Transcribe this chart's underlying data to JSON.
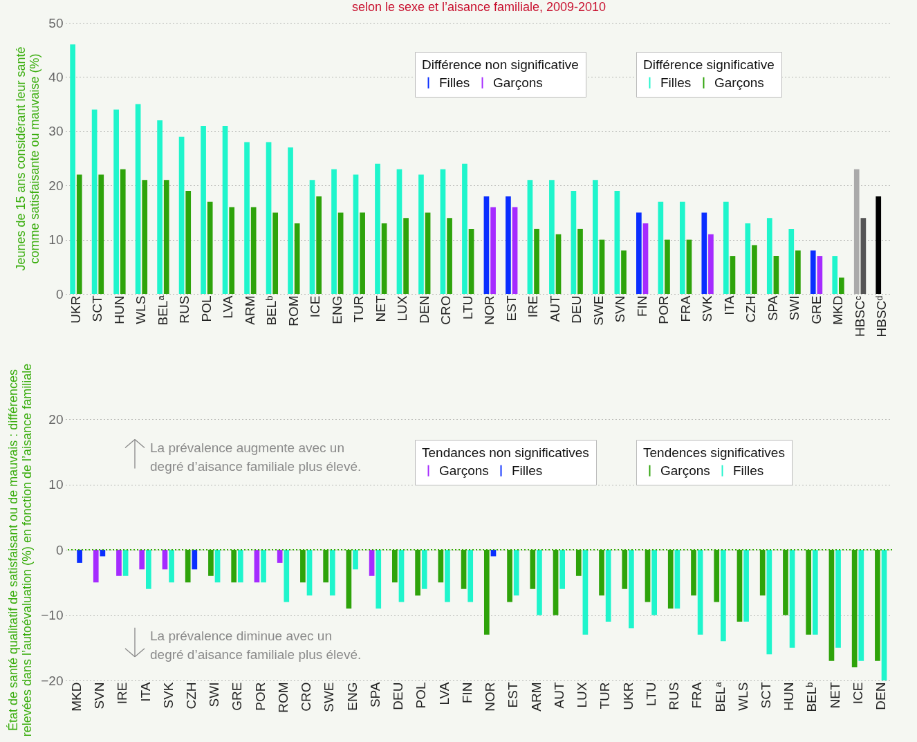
{
  "chart_data": [
    {
      "type": "bar",
      "title": "selon le sexe et l’aisance familiale, 2009-2010",
      "ylabel": "Jeunes de 15 ans considérant leur santé comme satisfaisante ou mauvaise (%)",
      "categories": [
        "UKR",
        "SCT",
        "HUN",
        "WLS",
        "BELᵃ",
        "RUS",
        "POL",
        "LVA",
        "ARM",
        "BELᵇ",
        "ROM",
        "ICE",
        "ENG",
        "TUR",
        "NET",
        "LUX",
        "DEN",
        "CRO",
        "LTU",
        "NOR",
        "EST",
        "IRE",
        "AUT",
        "DEU",
        "SWE",
        "SVN",
        "FIN",
        "POR",
        "FRA",
        "SVK",
        "ITA",
        "CZH",
        "SPA",
        "SWI",
        "GRE",
        "MKD",
        "HBSCᶜ",
        "HBSCᵈ"
      ],
      "series": [
        {
          "name": "Filles",
          "color": "#0a2eff",
          "values": [
            null,
            null,
            null,
            null,
            null,
            null,
            null,
            null,
            null,
            null,
            null,
            null,
            null,
            null,
            null,
            null,
            null,
            null,
            null,
            18,
            18,
            null,
            null,
            null,
            null,
            null,
            15,
            null,
            null,
            15,
            null,
            null,
            null,
            null,
            8,
            null,
            null,
            null
          ]
        },
        {
          "name": "Garçons",
          "color": "#a52bff",
          "values": [
            null,
            null,
            null,
            null,
            null,
            null,
            null,
            null,
            null,
            null,
            null,
            null,
            null,
            null,
            null,
            null,
            null,
            null,
            null,
            16,
            16,
            null,
            null,
            null,
            null,
            null,
            13,
            null,
            null,
            11,
            null,
            null,
            null,
            null,
            7,
            null,
            null,
            null
          ]
        },
        {
          "name": "Filles",
          "color": "#1ff5cc",
          "values": [
            46,
            34,
            34,
            35,
            32,
            29,
            31,
            31,
            28,
            28,
            27,
            21,
            23,
            22,
            24,
            23,
            22,
            23,
            24,
            null,
            null,
            21,
            21,
            19,
            21,
            19,
            null,
            17,
            17,
            null,
            17,
            13,
            14,
            12,
            null,
            7,
            null,
            null
          ]
        },
        {
          "name": "Garçons",
          "color": "#2ea30a",
          "values": [
            22,
            22,
            23,
            21,
            21,
            19,
            17,
            16,
            16,
            15,
            13,
            18,
            15,
            15,
            13,
            14,
            15,
            14,
            12,
            null,
            null,
            12,
            11,
            12,
            10,
            8,
            null,
            10,
            10,
            null,
            7,
            9,
            7,
            8,
            null,
            3,
            null,
            null
          ]
        },
        {
          "values": [
            null,
            null,
            null,
            null,
            null,
            null,
            null,
            null,
            null,
            null,
            null,
            null,
            null,
            null,
            null,
            null,
            null,
            null,
            null,
            null,
            null,
            null,
            null,
            null,
            null,
            null,
            null,
            null,
            null,
            null,
            null,
            null,
            null,
            null,
            null,
            null,
            23,
            18
          ],
          "colors": [
            null,
            null,
            null,
            null,
            null,
            null,
            null,
            null,
            null,
            null,
            null,
            null,
            null,
            null,
            null,
            null,
            null,
            null,
            null,
            null,
            null,
            null,
            null,
            null,
            null,
            null,
            null,
            null,
            null,
            null,
            null,
            null,
            null,
            null,
            null,
            null,
            "#aaaaaa",
            "#000000"
          ]
        },
        {
          "color": "#555555",
          "values": [
            null,
            null,
            null,
            null,
            null,
            null,
            null,
            null,
            null,
            null,
            null,
            null,
            null,
            null,
            null,
            null,
            null,
            null,
            null,
            null,
            null,
            null,
            null,
            null,
            null,
            null,
            null,
            null,
            null,
            null,
            null,
            null,
            null,
            null,
            null,
            null,
            14,
            null
          ]
        }
      ],
      "ylim": [
        0,
        50
      ],
      "yticks": [
        0,
        10,
        20,
        30,
        40,
        50
      ],
      "grid": "y",
      "legend": "top right",
      "annotations": [
        "Différence non significative",
        "Différence significative"
      ]
    },
    {
      "type": "bar",
      "ylabel": "État de santé qualitatif de satisfaisant ou de mauvais : différences relevées dans l’autoévaluation (%) en fonction de l’aisance familiale",
      "categories": [
        "MKD",
        "SVN",
        "IRE",
        "ITA",
        "SVK",
        "CZH",
        "SWI",
        "GRE",
        "POR",
        "ROM",
        "CRO",
        "SWE",
        "ENG",
        "SPA",
        "DEU",
        "POL",
        "LVA",
        "FIN",
        "NOR",
        "EST",
        "ARM",
        "AUT",
        "LUX",
        "TUR",
        "UKR",
        "LTU",
        "RUS",
        "FRA",
        "BELᵃ",
        "WLS",
        "SCT",
        "HUN",
        "BELᵇ",
        "NET",
        "ICE",
        "DEN"
      ],
      "series": [
        {
          "name": "Garçons",
          "color": "#a52bff",
          "values": [
            null,
            -5,
            -4,
            -3,
            -3,
            null,
            null,
            null,
            -5,
            -2,
            null,
            null,
            null,
            -4,
            null,
            null,
            null,
            null,
            null,
            null,
            null,
            null,
            null,
            null,
            null,
            null,
            null,
            null,
            null,
            null,
            null,
            null,
            null,
            null,
            null,
            null
          ]
        },
        {
          "name": "Filles",
          "color": "#0a2eff",
          "values": [
            -2,
            -1,
            null,
            null,
            null,
            -3,
            null,
            null,
            null,
            null,
            null,
            null,
            null,
            null,
            null,
            null,
            null,
            null,
            -1,
            null,
            null,
            null,
            null,
            null,
            null,
            null,
            null,
            null,
            null,
            null,
            null,
            null,
            null,
            null,
            null,
            null
          ]
        },
        {
          "name": "Garçons",
          "color": "#2ea30a",
          "values": [
            null,
            null,
            null,
            null,
            null,
            -5,
            -4,
            -5,
            null,
            null,
            -5,
            -5,
            -9,
            null,
            -5,
            -7,
            -5,
            -6,
            -13,
            -8,
            -6,
            -10,
            -4,
            -7,
            -6,
            -8,
            -9,
            -7,
            -8,
            -11,
            -7,
            -10,
            -13,
            -17,
            -18,
            -17
          ]
        },
        {
          "name": "Filles",
          "color": "#1ff5cc",
          "values": [
            null,
            null,
            -4,
            -6,
            -5,
            null,
            -5,
            -5,
            -5,
            -8,
            -7,
            -7,
            -3,
            -9,
            -8,
            -6,
            -8,
            -8,
            null,
            -7,
            -10,
            -6,
            -13,
            -11,
            -12,
            -10,
            -9,
            -13,
            -14,
            -11,
            -16,
            -15,
            -13,
            -15,
            -17,
            -20
          ]
        }
      ],
      "ylim": [
        -20,
        20
      ],
      "yticks": [
        -20,
        -10,
        0,
        10,
        20
      ],
      "grid": "y",
      "legend": "top right",
      "ref_lines": [
        {
          "axis": "y",
          "value": 0,
          "color": "#33aa00",
          "line_style": "dotted"
        }
      ],
      "annotations": [
        "Tendances non significatives",
        "Tendences significatives",
        "La prévalence augmente avec un",
        "degré d’aisance familiale plus élevé.",
        "La prévalence diminue avec un",
        "degré d’aisance familiale plus élevé."
      ]
    }
  ]
}
